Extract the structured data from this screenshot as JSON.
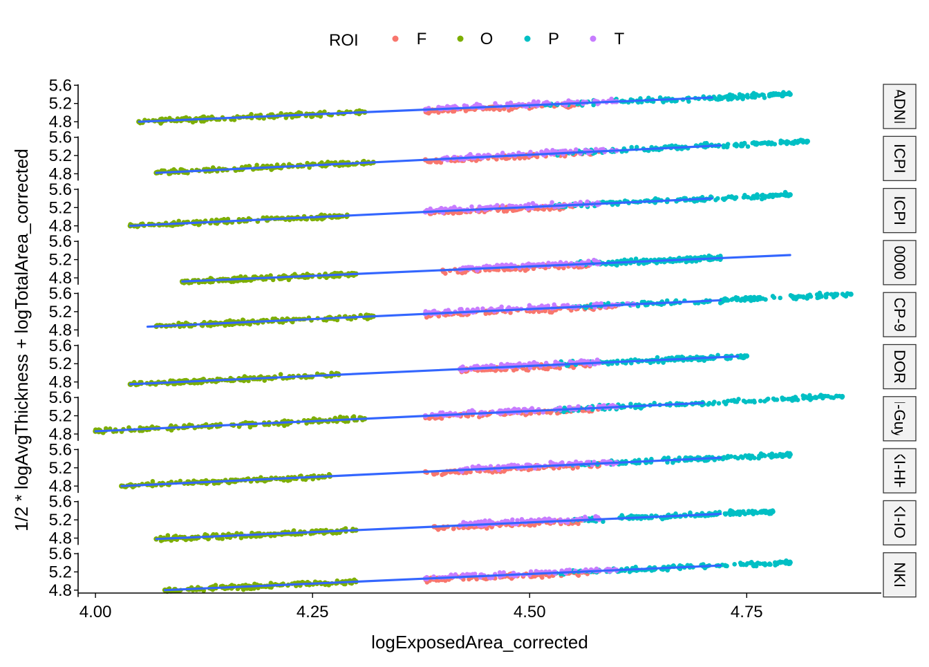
{
  "chart_data": {
    "type": "scatter",
    "xlabel": "logExposedArea_corrected",
    "ylabel": "1/2 * logAvgThickness + logTotalArea_corrected",
    "xlim": [
      3.98,
      4.905
    ],
    "ylim": [
      4.65,
      5.62
    ],
    "x_ticks": [
      {
        "value": 4.0,
        "label": "4.00"
      },
      {
        "value": 4.25,
        "label": "4.25"
      },
      {
        "value": 4.5,
        "label": "4.50"
      },
      {
        "value": 4.75,
        "label": "4.75"
      }
    ],
    "y_ticks": [
      {
        "value": 4.8,
        "label": "4.8"
      },
      {
        "value": 5.2,
        "label": "5.2"
      },
      {
        "value": 5.6,
        "label": "5.6"
      }
    ],
    "legend": {
      "title": "ROI",
      "placement": "top",
      "entries": [
        {
          "name": "F",
          "color": "#F8766D"
        },
        {
          "name": "O",
          "color": "#7CAE00"
        },
        {
          "name": "P",
          "color": "#00BFC4"
        },
        {
          "name": "T",
          "color": "#C77CFF"
        }
      ]
    },
    "fit_line_color": "#3366FF",
    "grid": false,
    "facets": [
      {
        "label": "ADNI",
        "fit": [
          [
            4.05,
            4.71
          ],
          [
            4.8,
            5.33
          ]
        ],
        "ranges": {
          "O": [
            4.05,
            4.31
          ],
          "F": [
            4.38,
            4.56
          ],
          "T": [
            4.38,
            4.6
          ],
          "P": [
            4.5,
            4.8
          ]
        }
      },
      {
        "label": "ICPI",
        "fit": [
          [
            4.07,
            4.72
          ],
          [
            4.82,
            5.42
          ]
        ],
        "ranges": {
          "O": [
            4.07,
            4.32
          ],
          "F": [
            4.38,
            4.58
          ],
          "T": [
            4.4,
            4.6
          ],
          "P": [
            4.53,
            4.82
          ]
        }
      },
      {
        "label": "ICPI",
        "fit": [
          [
            4.04,
            4.71
          ],
          [
            4.8,
            5.4
          ]
        ],
        "ranges": {
          "O": [
            4.04,
            4.29
          ],
          "F": [
            4.38,
            4.56
          ],
          "T": [
            4.38,
            4.58
          ],
          "P": [
            4.53,
            4.8
          ]
        }
      },
      {
        "label": "0000",
        "fit": [
          [
            4.1,
            4.8
          ],
          [
            4.72,
            5.3
          ]
        ],
        "ranges": {
          "O": [
            4.1,
            4.3
          ],
          "F": [
            4.4,
            4.57
          ],
          "T": [
            4.42,
            4.58
          ],
          "P": [
            4.55,
            4.72
          ]
        }
      },
      {
        "label": "CP-9",
        "fit": [
          [
            4.06,
            4.72
          ],
          [
            4.87,
            5.45
          ]
        ],
        "ranges": {
          "O": [
            4.07,
            4.32
          ],
          "F": [
            4.38,
            4.6
          ],
          "T": [
            4.38,
            4.62
          ],
          "P": [
            4.55,
            4.87
          ]
        }
      },
      {
        "label": "DOR",
        "fit": [
          [
            4.04,
            4.74
          ],
          [
            4.75,
            5.36
          ]
        ],
        "ranges": {
          "O": [
            4.04,
            4.28
          ],
          "F": [
            4.42,
            4.57
          ],
          "T": [
            4.42,
            4.58
          ],
          "P": [
            4.53,
            4.75
          ]
        }
      },
      {
        "label": "I-Guy",
        "fit": [
          [
            4.0,
            4.7
          ],
          [
            4.86,
            5.48
          ]
        ],
        "ranges": {
          "O": [
            4.0,
            4.31
          ],
          "F": [
            4.38,
            4.58
          ],
          "T": [
            4.38,
            4.6
          ],
          "P": [
            4.53,
            4.86
          ]
        }
      },
      {
        "label": "KI-HH",
        "fit": [
          [
            4.03,
            4.72
          ],
          [
            4.8,
            5.42
          ]
        ],
        "ranges": {
          "O": [
            4.03,
            4.27
          ],
          "F": [
            4.38,
            4.58
          ],
          "T": [
            4.42,
            4.6
          ],
          "P": [
            4.55,
            4.8
          ]
        }
      },
      {
        "label": "KI-IOI",
        "fit": [
          [
            4.07,
            4.72
          ],
          [
            4.78,
            5.33
          ]
        ],
        "ranges": {
          "O": [
            4.07,
            4.3
          ],
          "F": [
            4.39,
            4.56
          ],
          "T": [
            4.42,
            4.58
          ],
          "P": [
            4.55,
            4.78
          ]
        }
      },
      {
        "label": "NKI",
        "fit": [
          [
            4.08,
            4.72
          ],
          [
            4.8,
            5.34
          ]
        ],
        "ranges": {
          "O": [
            4.08,
            4.3
          ],
          "F": [
            4.38,
            4.58
          ],
          "T": [
            4.38,
            4.6
          ],
          "P": [
            4.53,
            4.8
          ]
        }
      }
    ]
  }
}
